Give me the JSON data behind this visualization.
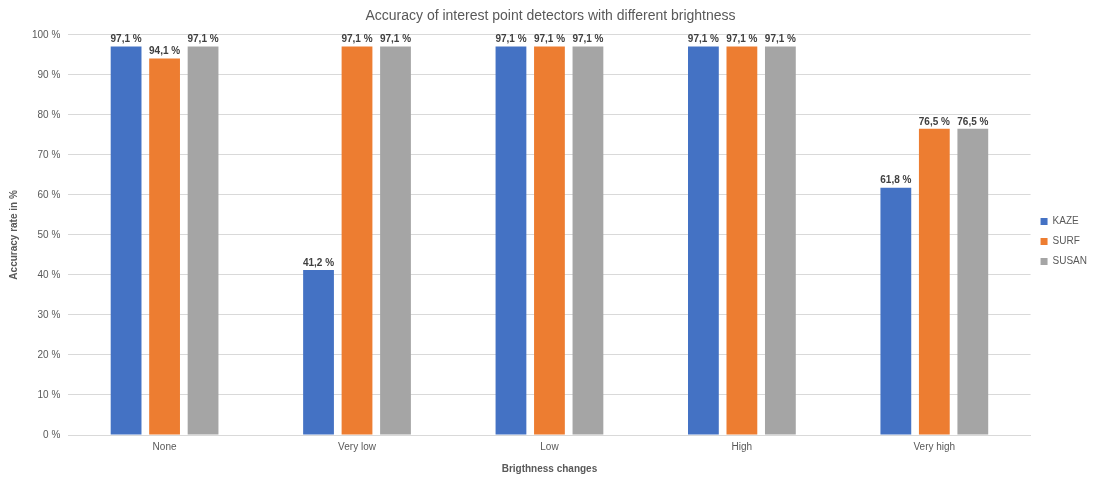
{
  "chart_data": {
    "type": "bar",
    "title": "Accuracy of interest point detectors with different brightness",
    "xlabel": "Brigthness changes",
    "ylabel": "Accuracy rate in %",
    "categories": [
      "None",
      "Very low",
      "Low",
      "High",
      "Very high"
    ],
    "series": [
      {
        "name": "KAZE",
        "color": "#4472c4",
        "values": [
          97.1,
          41.2,
          97.1,
          97.1,
          61.8
        ],
        "value_labels": [
          "97,1 %",
          "41,2 %",
          "97,1 %",
          "97,1 %",
          "61,8 %"
        ]
      },
      {
        "name": "SURF",
        "color": "#ed7d31",
        "values": [
          94.1,
          97.1,
          97.1,
          97.1,
          76.5
        ],
        "value_labels": [
          "94,1 %",
          "97,1 %",
          "97,1 %",
          "97,1 %",
          "76,5 %"
        ]
      },
      {
        "name": "SUSAN",
        "color": "#a5a5a5",
        "values": [
          97.1,
          97.1,
          97.1,
          97.1,
          76.5
        ],
        "value_labels": [
          "97,1 %",
          "97,1 %",
          "97,1 %",
          "97,1 %",
          "76,5 %"
        ]
      }
    ],
    "ylim": [
      0,
      100
    ],
    "yticks": [
      {
        "value": 0,
        "label": "0 %"
      },
      {
        "value": 10,
        "label": "10 %"
      },
      {
        "value": 20,
        "label": "20 %"
      },
      {
        "value": 30,
        "label": "30 %"
      },
      {
        "value": 40,
        "label": "40 %"
      },
      {
        "value": 50,
        "label": "50 %"
      },
      {
        "value": 60,
        "label": "60 %"
      },
      {
        "value": 70,
        "label": "70 %"
      },
      {
        "value": 80,
        "label": "80 %"
      },
      {
        "value": 90,
        "label": "90 %"
      },
      {
        "value": 100,
        "label": "100 %"
      }
    ],
    "grid": "y",
    "legend": "right"
  }
}
